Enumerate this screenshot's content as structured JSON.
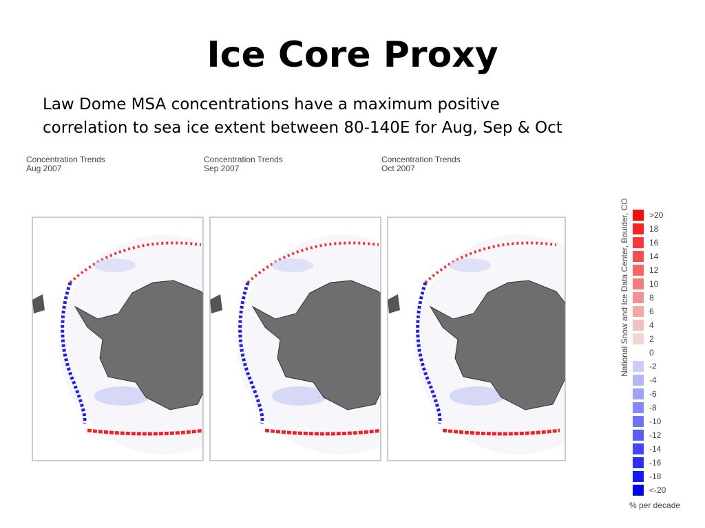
{
  "title": "Ice Core Proxy",
  "subtitle": [
    "Law Dome MSA concentrations have a maximum positive",
    "correlation to sea ice extent between 80-140E for Aug, Sep & Oct"
  ],
  "panels": [
    {
      "heading": "Concentration Trends",
      "month": "Aug 2007"
    },
    {
      "heading": "Concentration Trends",
      "month": "Sep 2007"
    },
    {
      "heading": "Concentration Trends",
      "month": "Oct 2007"
    }
  ],
  "legend": {
    "labels": [
      ">20",
      "18",
      "16",
      "14",
      "12",
      "10",
      "8",
      "6",
      "4",
      "2",
      "0",
      "-2",
      "-4",
      "-6",
      "-8",
      "-10",
      "-12",
      "-14",
      "-16",
      "-18",
      "<-20"
    ],
    "credit": "National Snow and Ice Data Center, Boulder, CO",
    "unit": "% per decade"
  }
}
